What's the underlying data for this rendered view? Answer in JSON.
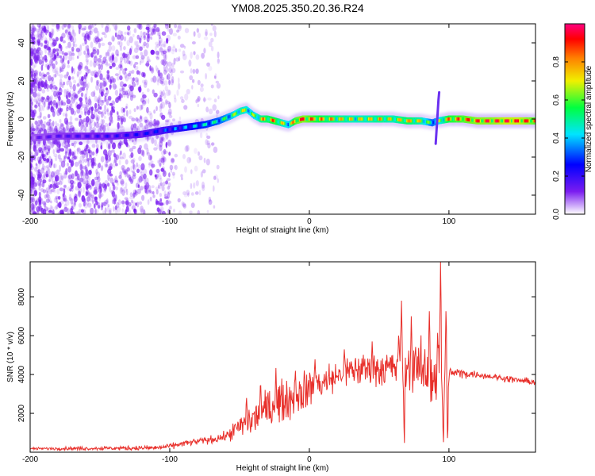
{
  "title": "YM08.2025.350.20.36.R24",
  "colors": {
    "snr_line": "#e8302b",
    "axis": "#000000",
    "scatter": "#7a1cf0"
  },
  "chart_data": [
    {
      "type": "heatmap",
      "name": "spectrogram",
      "xlabel": "Height of straight line (km)",
      "ylabel": "Frequency (Hz)",
      "xlim": [
        -200,
        162
      ],
      "ylim": [
        -50,
        50
      ],
      "xticks": [
        -200,
        -100,
        0,
        100
      ],
      "yticks": [
        -40,
        -20,
        0,
        20,
        40
      ],
      "colorbar": {
        "label": "Normalized spectral amplitude",
        "range": [
          0,
          1
        ],
        "ticks": [
          0.0,
          0.2,
          0.4,
          0.6,
          0.8
        ],
        "colormap": [
          "#ffffff",
          "#7a1cf0",
          "#0000ff",
          "#00e5ff",
          "#00ff40",
          "#f0f000",
          "#ff8000",
          "#ff0000",
          "#ff0080"
        ]
      },
      "ridge": {
        "x": [
          -200,
          -180,
          -160,
          -140,
          -120,
          -105,
          -95,
          -85,
          -75,
          -65,
          -55,
          -50,
          -45,
          -40,
          -35,
          -30,
          -25,
          -20,
          -15,
          -10,
          -5,
          0,
          10,
          20,
          30,
          40,
          50,
          60,
          70,
          80,
          88,
          92,
          100,
          110,
          120,
          130,
          140,
          150,
          162
        ],
        "y": [
          -10,
          -9,
          -9,
          -9,
          -8,
          -6,
          -5,
          -4,
          -3,
          -1,
          2,
          4,
          5,
          2,
          0,
          0,
          -1,
          -2,
          -3,
          -1,
          0,
          0,
          0,
          0,
          0,
          0,
          0,
          0,
          -1,
          -1,
          -2,
          -1,
          0,
          0,
          -1,
          -1,
          -1,
          -1,
          -1
        ],
        "amplitude": [
          0.15,
          0.18,
          0.2,
          0.22,
          0.25,
          0.3,
          0.35,
          0.4,
          0.45,
          0.5,
          0.6,
          0.7,
          0.65,
          0.6,
          0.75,
          0.8,
          0.85,
          0.7,
          0.6,
          0.9,
          0.95,
          0.9,
          0.8,
          0.75,
          0.7,
          0.7,
          0.75,
          0.7,
          0.8,
          0.7,
          0.5,
          0.6,
          0.85,
          0.9,
          0.95,
          0.95,
          1.0,
          1.0,
          0.9
        ]
      },
      "noise_region_x": [
        -200,
        -65
      ]
    },
    {
      "type": "line",
      "name": "snr",
      "xlabel": "Height of straight line (km)",
      "ylabel": "SNR (10 * v/v)",
      "xlim": [
        -200,
        162
      ],
      "ylim": [
        0,
        9800
      ],
      "xticks": [
        -200,
        -100,
        0,
        100
      ],
      "yticks": [
        2000,
        4000,
        6000,
        8000
      ],
      "envelope": {
        "x": [
          -200,
          -150,
          -110,
          -100,
          -90,
          -80,
          -70,
          -60,
          -50,
          -40,
          -30,
          -20,
          -10,
          0,
          10,
          20,
          30,
          40,
          50,
          60,
          70,
          80,
          90,
          95,
          100,
          101,
          110,
          120,
          130,
          140,
          150,
          162
        ],
        "y": [
          180,
          200,
          220,
          300,
          450,
          550,
          650,
          800,
          1300,
          1700,
          2200,
          2600,
          2900,
          3300,
          3600,
          3900,
          4200,
          4300,
          4300,
          4350,
          4300,
          4200,
          3900,
          3500,
          3800,
          4100,
          4050,
          4000,
          3900,
          3800,
          3700,
          3600
        ]
      },
      "noise": {
        "x": [
          -200,
          -100,
          -60,
          -40,
          -20,
          0,
          20,
          40,
          60,
          80,
          95,
          100,
          120,
          162
        ],
        "amp": [
          60,
          120,
          200,
          900,
          900,
          900,
          700,
          800,
          900,
          1200,
          2000,
          300,
          150,
          150
        ]
      },
      "spikes": [
        {
          "x": -45,
          "y": 2800
        },
        {
          "x": -35,
          "y": 3600
        },
        {
          "x": -24,
          "y": 4350
        },
        {
          "x": -10,
          "y": 4200
        },
        {
          "x": 4,
          "y": 4800
        },
        {
          "x": 25,
          "y": 5300
        },
        {
          "x": 45,
          "y": 5700
        },
        {
          "x": 64,
          "y": 6100
        },
        {
          "x": 66,
          "y": 7800
        },
        {
          "x": 68,
          "y": 350
        },
        {
          "x": 73,
          "y": 7000
        },
        {
          "x": 76,
          "y": 5500
        },
        {
          "x": 86,
          "y": 7300
        },
        {
          "x": 92,
          "y": 6200
        },
        {
          "x": 94,
          "y": 9800
        },
        {
          "x": 96,
          "y": 400
        },
        {
          "x": 98,
          "y": 7600
        },
        {
          "x": 99,
          "y": 600
        }
      ]
    }
  ]
}
